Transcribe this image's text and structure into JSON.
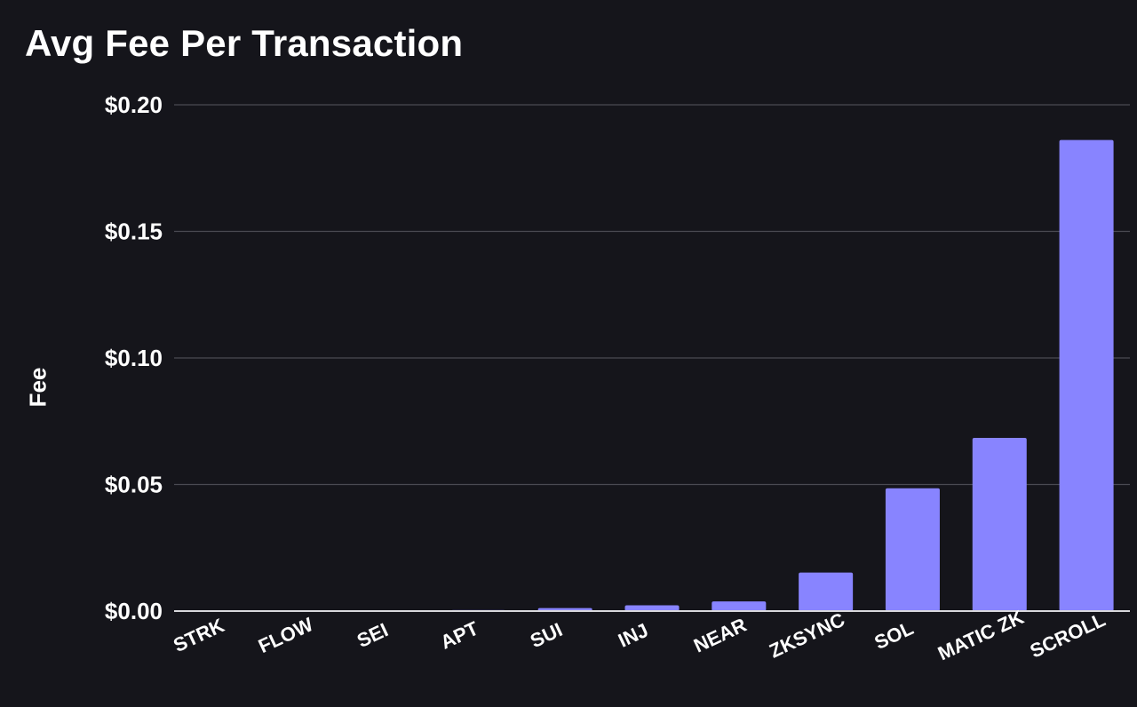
{
  "chart_data": {
    "type": "bar",
    "title": "Avg Fee Per Transaction",
    "xlabel": "",
    "ylabel": "Fee",
    "ylim": [
      0,
      0.2
    ],
    "yticks": [
      0,
      0.05,
      0.1,
      0.15,
      0.2
    ],
    "ytick_labels": [
      "$0.00",
      "$0.05",
      "$0.10",
      "$0.15",
      "$0.20"
    ],
    "grid": true,
    "legend": "none",
    "categories": [
      "STRK",
      "FLOW",
      "SEI",
      "APT",
      "SUI",
      "INJ",
      "NEAR",
      "ZKSYNC",
      "SOL",
      "MATIC ZK",
      "SCROLL"
    ],
    "values": [
      0.0001,
      0.0001,
      0.0001,
      0.0004,
      0.0012,
      0.0023,
      0.0038,
      0.0152,
      0.0485,
      0.0684,
      0.1861
    ],
    "colors": {
      "bar": "#8884ff",
      "background": "#15151b",
      "grid": "#4a4a52",
      "axis": "#d8d8dc",
      "text": "#ffffff"
    }
  }
}
